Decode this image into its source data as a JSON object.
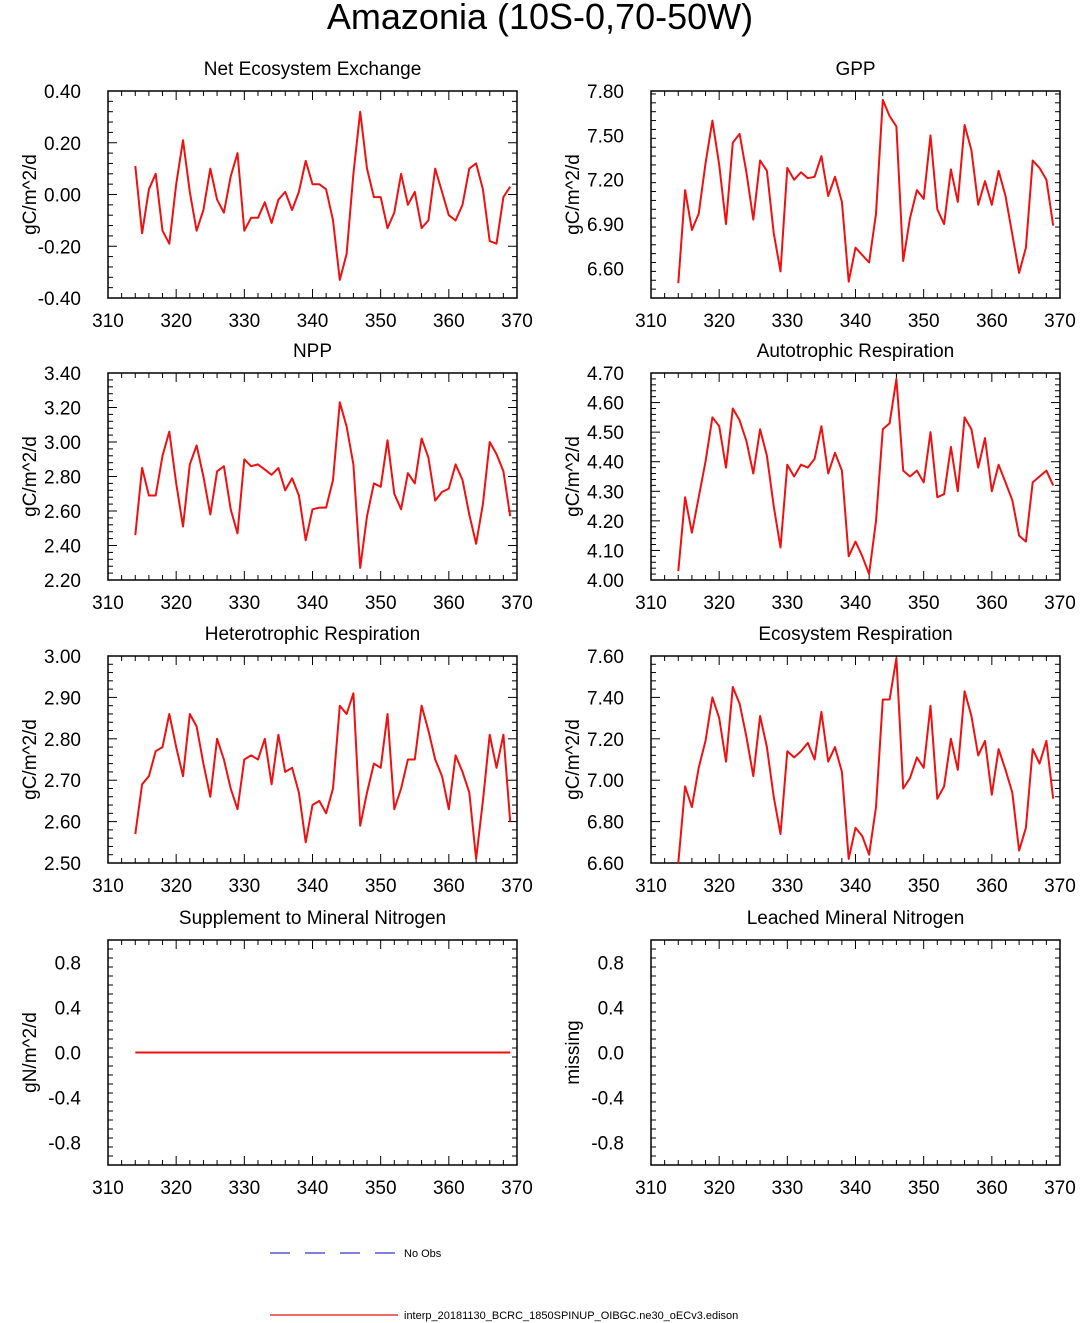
{
  "figure": {
    "title": "Amazonia (10S-0,70-50W)"
  },
  "legend": {
    "items": [
      {
        "label": "No Obs",
        "color": "#3333cc",
        "style": "dashed"
      },
      {
        "label": "interp_20181130_BCRC_1850SPINUP_OIBGC.ne30_oECv3.edison",
        "color": "#ee1111",
        "style": "solid"
      }
    ]
  },
  "colors": {
    "series": "#ee1111",
    "obs": "#3333cc",
    "axis": "#000000"
  },
  "chart_data": [
    {
      "type": "line",
      "title": "Net Ecosystem Exchange",
      "ylabel": "gC/m^2/d",
      "xlim": [
        310,
        370
      ],
      "xticks": [
        310,
        320,
        330,
        340,
        350,
        360,
        370
      ],
      "ylim": [
        -0.4,
        0.4
      ],
      "yticks": [
        -0.4,
        -0.2,
        0.0,
        0.2,
        0.4
      ],
      "ydec": 2,
      "x": [
        314,
        315,
        316,
        317,
        318,
        319,
        320,
        321,
        322,
        323,
        324,
        325,
        326,
        327,
        328,
        329,
        330,
        331,
        332,
        333,
        334,
        335,
        336,
        337,
        338,
        339,
        340,
        341,
        342,
        343,
        344,
        345,
        346,
        347,
        348,
        349,
        350,
        351,
        352,
        353,
        354,
        355,
        356,
        357,
        358,
        359,
        360,
        361,
        362,
        363,
        364,
        365,
        366,
        367,
        368,
        369
      ],
      "series": [
        {
          "name": "interp_20181130_BCRC_1850SPINUP_OIBGC.ne30_oECv3.edison",
          "values": [
            0.11,
            -0.15,
            0.02,
            0.08,
            -0.14,
            -0.19,
            0.04,
            0.21,
            0.01,
            -0.14,
            -0.06,
            0.1,
            -0.02,
            -0.07,
            0.07,
            0.16,
            -0.14,
            -0.09,
            -0.09,
            -0.03,
            -0.11,
            -0.02,
            0.01,
            -0.06,
            0.01,
            0.13,
            0.04,
            0.04,
            0.02,
            -0.1,
            -0.33,
            -0.23,
            0.08,
            0.32,
            0.1,
            -0.01,
            -0.01,
            -0.13,
            -0.07,
            0.08,
            -0.04,
            0.01,
            -0.13,
            -0.1,
            0.1,
            0.01,
            -0.08,
            -0.1,
            -0.04,
            0.1,
            0.12,
            0.02,
            -0.18,
            -0.19,
            -0.01,
            0.03
          ]
        }
      ]
    },
    {
      "type": "line",
      "title": "GPP",
      "ylabel": "gC/m^2/d",
      "xlim": [
        310,
        370
      ],
      "xticks": [
        310,
        320,
        330,
        340,
        350,
        360,
        370
      ],
      "ylim": [
        6.4,
        7.8
      ],
      "yticks": [
        6.6,
        6.9,
        7.2,
        7.5,
        7.8
      ],
      "ydec": 2,
      "x": [
        314,
        315,
        316,
        317,
        318,
        319,
        320,
        321,
        322,
        323,
        324,
        325,
        326,
        327,
        328,
        329,
        330,
        331,
        332,
        333,
        334,
        335,
        336,
        337,
        338,
        339,
        340,
        341,
        342,
        343,
        344,
        345,
        346,
        347,
        348,
        349,
        350,
        351,
        352,
        353,
        354,
        355,
        356,
        357,
        358,
        359,
        360,
        361,
        362,
        363,
        364,
        365,
        366,
        367,
        368,
        369
      ],
      "series": [
        {
          "name": "interp_20181130_BCRC_1850SPINUP_OIBGC.ne30_oECv3.edison",
          "values": [
            6.5,
            7.13,
            6.86,
            6.97,
            7.31,
            7.6,
            7.3,
            6.9,
            7.45,
            7.51,
            7.25,
            6.93,
            7.33,
            7.26,
            6.84,
            6.58,
            7.28,
            7.2,
            7.25,
            7.21,
            7.22,
            7.36,
            7.09,
            7.22,
            7.05,
            6.51,
            6.74,
            6.69,
            6.64,
            6.97,
            7.74,
            7.63,
            7.56,
            6.65,
            6.94,
            7.13,
            7.07,
            7.5,
            7.0,
            6.9,
            7.27,
            7.05,
            7.57,
            7.4,
            7.03,
            7.19,
            7.03,
            7.26,
            7.09,
            6.83,
            6.57,
            6.74,
            7.33,
            7.28,
            7.2,
            6.89
          ]
        }
      ]
    },
    {
      "type": "line",
      "title": "NPP",
      "ylabel": "gC/m^2/d",
      "xlim": [
        310,
        370
      ],
      "xticks": [
        310,
        320,
        330,
        340,
        350,
        360,
        370
      ],
      "ylim": [
        2.2,
        3.4
      ],
      "yticks": [
        2.2,
        2.4,
        2.6,
        2.8,
        3.0,
        3.2,
        3.4
      ],
      "ydec": 2,
      "x": [
        314,
        315,
        316,
        317,
        318,
        319,
        320,
        321,
        322,
        323,
        324,
        325,
        326,
        327,
        328,
        329,
        330,
        331,
        332,
        333,
        334,
        335,
        336,
        337,
        338,
        339,
        340,
        341,
        342,
        343,
        344,
        345,
        346,
        347,
        348,
        349,
        350,
        351,
        352,
        353,
        354,
        355,
        356,
        357,
        358,
        359,
        360,
        361,
        362,
        363,
        364,
        365,
        366,
        367,
        368,
        369
      ],
      "series": [
        {
          "name": "interp_20181130_BCRC_1850SPINUP_OIBGC.ne30_oECv3.edison",
          "values": [
            2.46,
            2.85,
            2.69,
            2.69,
            2.92,
            3.06,
            2.76,
            2.51,
            2.87,
            2.98,
            2.8,
            2.58,
            2.83,
            2.86,
            2.61,
            2.47,
            2.9,
            2.86,
            2.87,
            2.84,
            2.81,
            2.85,
            2.72,
            2.79,
            2.69,
            2.43,
            2.61,
            2.62,
            2.62,
            2.78,
            3.23,
            3.09,
            2.87,
            2.27,
            2.57,
            2.76,
            2.74,
            3.01,
            2.7,
            2.61,
            2.82,
            2.76,
            3.02,
            2.91,
            2.66,
            2.71,
            2.73,
            2.87,
            2.78,
            2.58,
            2.41,
            2.64,
            3.0,
            2.93,
            2.83,
            2.57
          ]
        }
      ]
    },
    {
      "type": "line",
      "title": "Autotrophic Respiration",
      "ylabel": "gC/m^2/d",
      "xlim": [
        310,
        370
      ],
      "xticks": [
        310,
        320,
        330,
        340,
        350,
        360,
        370
      ],
      "ylim": [
        4.0,
        4.7
      ],
      "yticks": [
        4.0,
        4.1,
        4.2,
        4.3,
        4.4,
        4.5,
        4.6,
        4.7
      ],
      "ydec": 2,
      "x": [
        314,
        315,
        316,
        317,
        318,
        319,
        320,
        321,
        322,
        323,
        324,
        325,
        326,
        327,
        328,
        329,
        330,
        331,
        332,
        333,
        334,
        335,
        336,
        337,
        338,
        339,
        340,
        341,
        342,
        343,
        344,
        345,
        346,
        347,
        348,
        349,
        350,
        351,
        352,
        353,
        354,
        355,
        356,
        357,
        358,
        359,
        360,
        361,
        362,
        363,
        364,
        365,
        366,
        367,
        368,
        369
      ],
      "series": [
        {
          "name": "interp_20181130_BCRC_1850SPINUP_OIBGC.ne30_oECv3.edison",
          "values": [
            4.03,
            4.28,
            4.16,
            4.28,
            4.4,
            4.55,
            4.52,
            4.38,
            4.58,
            4.54,
            4.47,
            4.36,
            4.51,
            4.42,
            4.25,
            4.11,
            4.39,
            4.35,
            4.39,
            4.38,
            4.41,
            4.52,
            4.36,
            4.43,
            4.37,
            4.08,
            4.13,
            4.08,
            4.02,
            4.2,
            4.51,
            4.53,
            4.68,
            4.37,
            4.35,
            4.37,
            4.33,
            4.5,
            4.28,
            4.29,
            4.45,
            4.3,
            4.55,
            4.51,
            4.38,
            4.48,
            4.3,
            4.39,
            4.33,
            4.27,
            4.15,
            4.13,
            4.33,
            4.35,
            4.37,
            4.32
          ]
        }
      ]
    },
    {
      "type": "line",
      "title": "Heterotrophic Respiration",
      "ylabel": "gC/m^2/d",
      "xlim": [
        310,
        370
      ],
      "xticks": [
        310,
        320,
        330,
        340,
        350,
        360,
        370
      ],
      "ylim": [
        2.5,
        3.0
      ],
      "yticks": [
        2.5,
        2.6,
        2.7,
        2.8,
        2.9,
        3.0
      ],
      "ydec": 2,
      "x": [
        314,
        315,
        316,
        317,
        318,
        319,
        320,
        321,
        322,
        323,
        324,
        325,
        326,
        327,
        328,
        329,
        330,
        331,
        332,
        333,
        334,
        335,
        336,
        337,
        338,
        339,
        340,
        341,
        342,
        343,
        344,
        345,
        346,
        347,
        348,
        349,
        350,
        351,
        352,
        353,
        354,
        355,
        356,
        357,
        358,
        359,
        360,
        361,
        362,
        363,
        364,
        365,
        366,
        367,
        368,
        369
      ],
      "series": [
        {
          "name": "interp_20181130_BCRC_1850SPINUP_OIBGC.ne30_oECv3.edison",
          "values": [
            2.57,
            2.69,
            2.71,
            2.77,
            2.78,
            2.86,
            2.78,
            2.71,
            2.86,
            2.83,
            2.74,
            2.66,
            2.8,
            2.75,
            2.68,
            2.63,
            2.75,
            2.76,
            2.75,
            2.8,
            2.69,
            2.81,
            2.72,
            2.73,
            2.67,
            2.55,
            2.64,
            2.65,
            2.62,
            2.68,
            2.88,
            2.86,
            2.91,
            2.59,
            2.67,
            2.74,
            2.73,
            2.86,
            2.63,
            2.68,
            2.75,
            2.75,
            2.88,
            2.82,
            2.75,
            2.71,
            2.63,
            2.76,
            2.72,
            2.67,
            2.51,
            2.65,
            2.81,
            2.73,
            2.81,
            2.6
          ]
        }
      ]
    },
    {
      "type": "line",
      "title": "Ecosystem Respiration",
      "ylabel": "gC/m^2/d",
      "xlim": [
        310,
        370
      ],
      "xticks": [
        310,
        320,
        330,
        340,
        350,
        360,
        370
      ],
      "ylim": [
        6.6,
        7.6
      ],
      "yticks": [
        6.6,
        6.8,
        7.0,
        7.2,
        7.4,
        7.6
      ],
      "ydec": 2,
      "x": [
        314,
        315,
        316,
        317,
        318,
        319,
        320,
        321,
        322,
        323,
        324,
        325,
        326,
        327,
        328,
        329,
        330,
        331,
        332,
        333,
        334,
        335,
        336,
        337,
        338,
        339,
        340,
        341,
        342,
        343,
        344,
        345,
        346,
        347,
        348,
        349,
        350,
        351,
        352,
        353,
        354,
        355,
        356,
        357,
        358,
        359,
        360,
        361,
        362,
        363,
        364,
        365,
        366,
        367,
        368,
        369
      ],
      "series": [
        {
          "name": "interp_20181130_BCRC_1850SPINUP_OIBGC.ne30_oECv3.edison",
          "values": [
            6.6,
            6.97,
            6.87,
            7.06,
            7.19,
            7.4,
            7.3,
            7.09,
            7.45,
            7.37,
            7.21,
            7.02,
            7.31,
            7.16,
            6.92,
            6.74,
            7.14,
            7.11,
            7.14,
            7.18,
            7.1,
            7.33,
            7.09,
            7.16,
            7.04,
            6.62,
            6.77,
            6.73,
            6.64,
            6.87,
            7.39,
            7.39,
            7.59,
            6.96,
            7.01,
            7.11,
            7.06,
            7.36,
            6.91,
            6.97,
            7.2,
            7.05,
            7.43,
            7.31,
            7.12,
            7.19,
            6.93,
            7.15,
            7.05,
            6.94,
            6.66,
            6.77,
            7.15,
            7.08,
            7.19,
            6.91
          ]
        }
      ]
    },
    {
      "type": "line",
      "title": "Supplement to Mineral Nitrogen",
      "ylabel": "gN/m^2/d",
      "xlim": [
        310,
        370
      ],
      "xticks": [
        310,
        320,
        330,
        340,
        350,
        360,
        370
      ],
      "ylim": [
        -1.0,
        1.0
      ],
      "yticks": [
        -0.8,
        -0.4,
        0.0,
        0.4,
        0.8
      ],
      "ydec": 1,
      "x": [
        314,
        369
      ],
      "series": [
        {
          "name": "interp_20181130_BCRC_1850SPINUP_OIBGC.ne30_oECv3.edison",
          "values": [
            0.0,
            0.0
          ]
        }
      ]
    },
    {
      "type": "line",
      "title": "Leached Mineral Nitrogen",
      "ylabel": "missing",
      "xlim": [
        310,
        370
      ],
      "xticks": [
        310,
        320,
        330,
        340,
        350,
        360,
        370
      ],
      "ylim": [
        -1.0,
        1.0
      ],
      "yticks": [
        -0.8,
        -0.4,
        0.0,
        0.4,
        0.8
      ],
      "ydec": 1,
      "x": [],
      "series": []
    }
  ]
}
